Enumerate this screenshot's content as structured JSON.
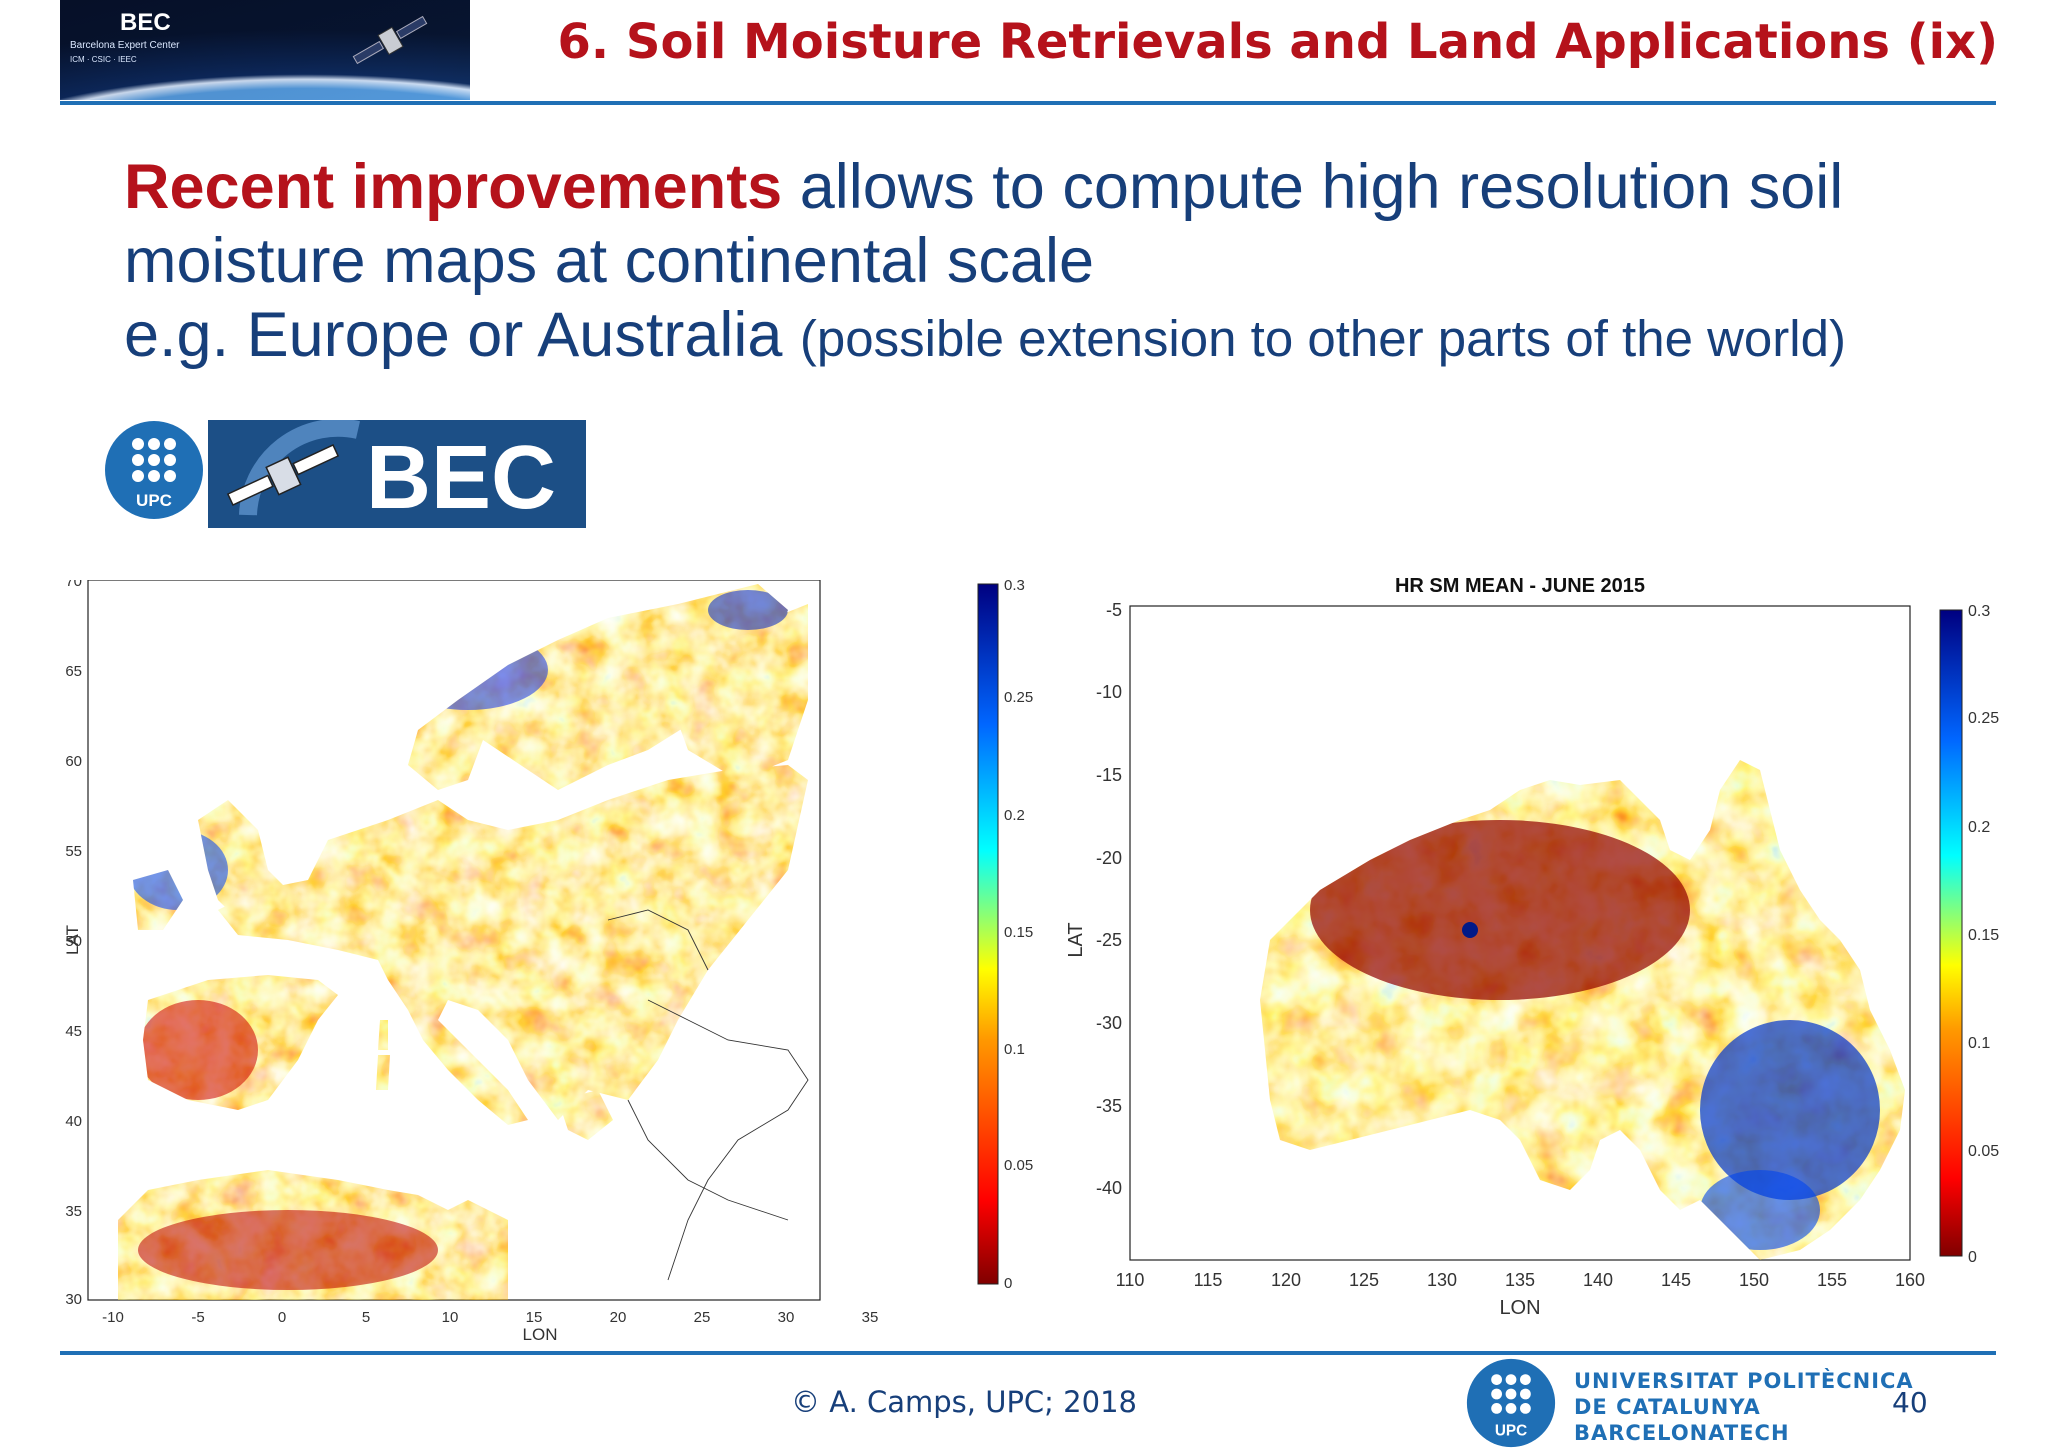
{
  "header": {
    "banner_brand": "BEC",
    "banner_subtitle": "Barcelona Expert Center",
    "banner_partners": "ICM · CSIC · IEEC",
    "title": "6. Soil Moisture Retrievals and Land Applications (ix)"
  },
  "headline": {
    "emphasis": "Recent improvements",
    "line1": " allows to compute high resolution soil",
    "line2": "moisture maps at continental scale",
    "line3_main": "e.g. Europe or Australia ",
    "line3_small": "(possible extension to other parts of the world)"
  },
  "logos": {
    "upc_text": "UPC",
    "bec_text": "BEC"
  },
  "maps": {
    "europe": {
      "title": "",
      "xlabel": "LON",
      "ylabel": "LAT",
      "xticks": [
        "-10",
        "-5",
        "0",
        "5",
        "10",
        "15",
        "20",
        "25",
        "30",
        "35"
      ],
      "yticks": [
        "70",
        "65",
        "60",
        "55",
        "50",
        "45",
        "40",
        "35",
        "30"
      ],
      "colorbar_ticks": [
        "0.3",
        "0.25",
        "0.2",
        "0.15",
        "0.1",
        "0.05",
        "0"
      ]
    },
    "australia": {
      "title": "HR SM MEAN - JUNE 2015",
      "xlabel": "LON",
      "ylabel": "LAT",
      "xticks": [
        "110",
        "115",
        "120",
        "125",
        "130",
        "135",
        "140",
        "145",
        "150",
        "155",
        "160"
      ],
      "yticks": [
        "-5",
        "-10",
        "-15",
        "-20",
        "-25",
        "-30",
        "-35",
        "-40"
      ],
      "colorbar_ticks": [
        "0.3",
        "0.25",
        "0.2",
        "0.15",
        "0.1",
        "0.05",
        "0"
      ]
    }
  },
  "footer": {
    "copyright": "© A. Camps, UPC; 2018",
    "uni_line1": "UNIVERSITAT POLITÈCNICA",
    "uni_line2": "DE CATALUNYA",
    "uni_line3": "BARCELONATECH",
    "page": "40"
  },
  "colors": {
    "title_red": "#b5121b",
    "text_blue": "#173f7a",
    "rule_blue": "#1f6fb5"
  }
}
